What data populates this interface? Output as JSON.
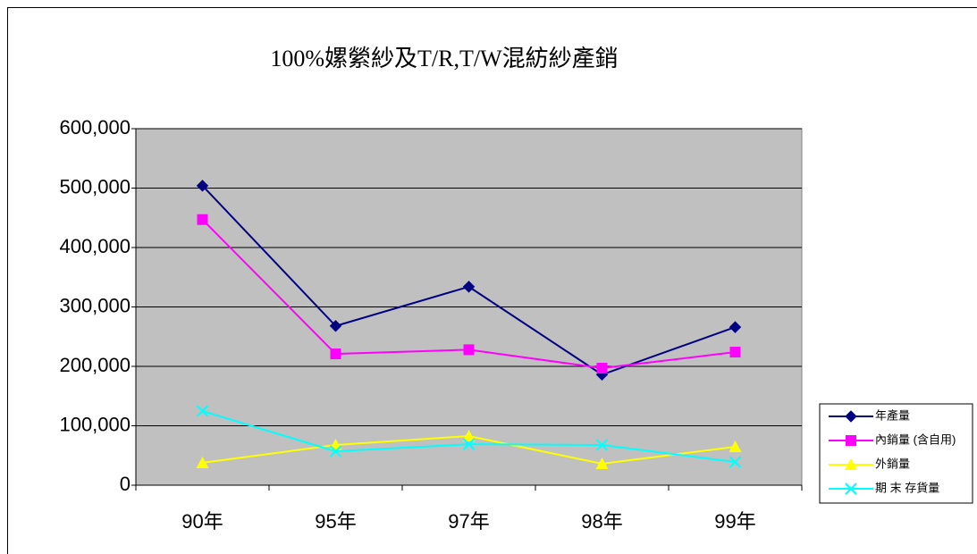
{
  "chart_data": {
    "type": "line",
    "title": "100%嫘縈紗及T/R,T/W混紡紗產銷",
    "categories": [
      "90年",
      "95年",
      "97年",
      "98年",
      "99年"
    ],
    "series": [
      {
        "name": "年產量",
        "color": "#000080",
        "marker": "diamond",
        "values": [
          504000,
          268000,
          334000,
          186000,
          266000
        ]
      },
      {
        "name": "內銷量 (含自用)",
        "color": "#ff00ff",
        "marker": "square",
        "values": [
          447000,
          221000,
          228000,
          197000,
          224000
        ]
      },
      {
        "name": "外銷量",
        "color": "#ffff00",
        "marker": "triangle",
        "values": [
          37600,
          67700,
          82700,
          36100,
          64700
        ]
      },
      {
        "name": "期 末 存貨量",
        "color": "#00ffff",
        "marker": "x",
        "values": [
          124800,
          57000,
          69000,
          67700,
          39100
        ]
      }
    ],
    "ylim": [
      0,
      600000
    ],
    "yticks": [
      0,
      {
        "value": 100000,
        "label": "100,000"
      },
      {
        "value": 200000,
        "label": "200,000"
      },
      {
        "value": 300000,
        "label": "300,000"
      },
      {
        "value": 400000,
        "label": "400,000"
      },
      {
        "value": 500000,
        "label": "500,000"
      },
      {
        "value": 600000,
        "label": "600,000"
      }
    ],
    "grid": true,
    "legend": "right",
    "plot_background": "#c0c0c0"
  }
}
